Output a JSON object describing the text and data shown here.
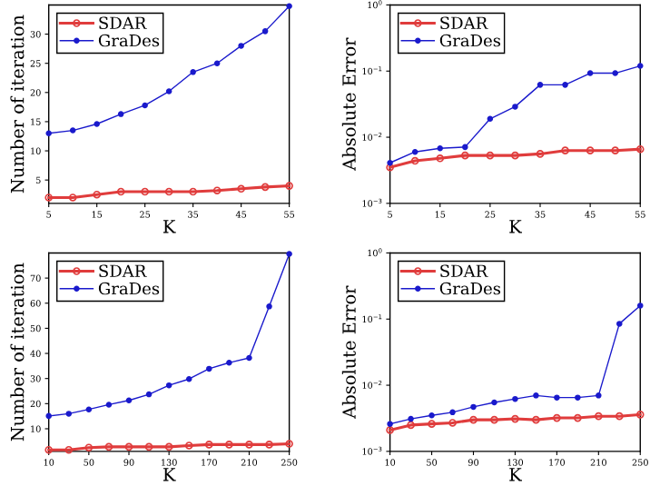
{
  "chart_data": [
    {
      "type": "line",
      "xlabel": "K",
      "ylabel": "Number of iteration",
      "x": [
        5,
        10,
        15,
        20,
        25,
        30,
        35,
        40,
        45,
        50,
        55
      ],
      "xlim": [
        5,
        55
      ],
      "xticks": [
        5,
        15,
        25,
        35,
        45,
        55
      ],
      "ylim": [
        1,
        35
      ],
      "yticks": [
        5,
        10,
        15,
        20,
        25,
        30
      ],
      "legend": "top left",
      "grid": false,
      "series": [
        {
          "name": "SDAR",
          "color": "#e03c3c",
          "marker": "circle",
          "values": [
            2,
            2,
            2.5,
            3,
            3,
            3,
            3,
            3.2,
            3.5,
            3.8,
            4
          ]
        },
        {
          "name": "GraDes",
          "color": "#1a1acc",
          "marker": "dot",
          "values": [
            13,
            13.5,
            14.6,
            16.3,
            17.8,
            20.2,
            23.5,
            25,
            28,
            30.5,
            34.8
          ]
        }
      ]
    },
    {
      "type": "line",
      "xlabel": "K",
      "ylabel": "Absolute Error",
      "log": "y",
      "x": [
        5,
        10,
        15,
        20,
        25,
        30,
        35,
        40,
        45,
        50,
        55
      ],
      "xlim": [
        5,
        55
      ],
      "xticks": [
        5,
        15,
        25,
        35,
        45,
        55
      ],
      "ylim": [
        0.001,
        1
      ],
      "yticks": [
        {
          "value": 0.001,
          "label": "10$^{−3}$"
        },
        {
          "value": 0.01,
          "label": "10$^{−2}$"
        },
        {
          "value": 0.1,
          "label": "10$^{−1}$"
        },
        {
          "value": 1,
          "label": "10$^{0}$"
        }
      ],
      "legend": "top left",
      "grid": false,
      "series": [
        {
          "name": "SDAR",
          "color": "#e03c3c",
          "marker": "circle",
          "values": [
            0.0035,
            0.0044,
            0.0048,
            0.0053,
            0.0053,
            0.0053,
            0.0056,
            0.0063,
            0.0063,
            0.0063,
            0.0066
          ]
        },
        {
          "name": "GraDes",
          "color": "#1a1acc",
          "marker": "dot",
          "values": [
            0.0041,
            0.006,
            0.0068,
            0.0071,
            0.019,
            0.029,
            0.062,
            0.062,
            0.093,
            0.093,
            0.12
          ]
        }
      ]
    },
    {
      "type": "line",
      "xlabel": "K",
      "ylabel": "Number of iteration",
      "x": [
        10,
        30,
        50,
        70,
        90,
        110,
        130,
        150,
        170,
        190,
        210,
        230,
        250
      ],
      "xlim": [
        10,
        250
      ],
      "xticks": [
        10,
        50,
        90,
        130,
        170,
        210,
        250
      ],
      "ylim": [
        1,
        80
      ],
      "yticks": [
        10,
        20,
        30,
        40,
        50,
        60,
        70
      ],
      "legend": "top left",
      "grid": false,
      "series": [
        {
          "name": "SDAR",
          "color": "#e03c3c",
          "marker": "circle",
          "values": [
            1.6,
            1.6,
            2.5,
            2.8,
            2.8,
            2.8,
            2.8,
            3.3,
            3.7,
            3.7,
            3.7,
            3.7,
            4
          ]
        },
        {
          "name": "GraDes",
          "color": "#1a1acc",
          "marker": "dot",
          "values": [
            15.1,
            16,
            17.7,
            19.6,
            21.3,
            23.7,
            27.3,
            29.8,
            33.9,
            36.3,
            38.2,
            58.7,
            79.6
          ]
        }
      ]
    },
    {
      "type": "line",
      "xlabel": "K",
      "ylabel": "Absolute Error",
      "log": "y",
      "x": [
        10,
        30,
        50,
        70,
        90,
        110,
        130,
        150,
        170,
        190,
        210,
        230,
        250
      ],
      "xlim": [
        10,
        250
      ],
      "xticks": [
        10,
        50,
        90,
        130,
        170,
        210,
        250
      ],
      "ylim": [
        0.001,
        1
      ],
      "yticks": [
        {
          "value": 0.001,
          "label": "10$^{−3}$"
        },
        {
          "value": 0.01,
          "label": "10$^{−2}$"
        },
        {
          "value": 0.1,
          "label": "10$^{−1}$"
        },
        {
          "value": 1,
          "label": "10$^{0}$"
        }
      ],
      "legend": "top left",
      "grid": false,
      "series": [
        {
          "name": "SDAR",
          "color": "#e03c3c",
          "marker": "circle",
          "values": [
            0.0021,
            0.0025,
            0.0026,
            0.0027,
            0.003,
            0.003,
            0.0031,
            0.003,
            0.0032,
            0.0032,
            0.0034,
            0.0034,
            0.0036
          ]
        },
        {
          "name": "GraDes",
          "color": "#1a1acc",
          "marker": "dot",
          "values": [
            0.0026,
            0.0031,
            0.0035,
            0.0039,
            0.0047,
            0.0055,
            0.0062,
            0.007,
            0.0065,
            0.0065,
            0.007,
            0.085,
            0.16
          ]
        }
      ]
    }
  ]
}
